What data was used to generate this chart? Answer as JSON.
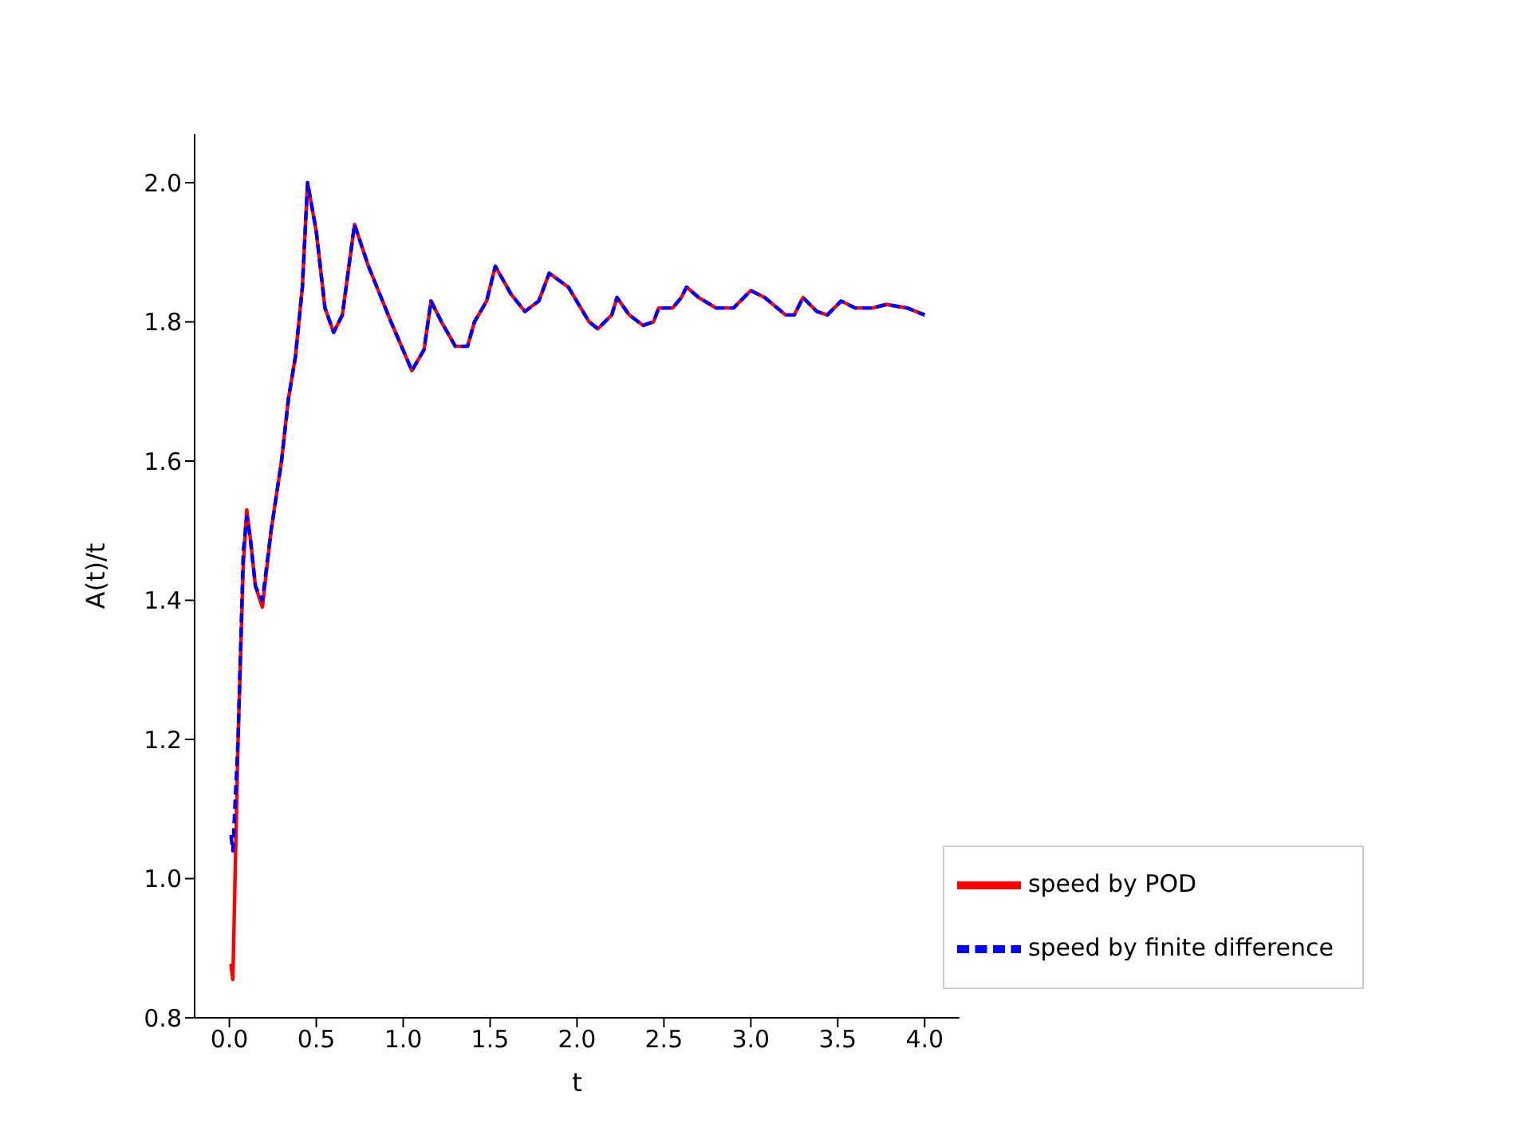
{
  "chart_data": {
    "type": "line",
    "xlabel": "t",
    "ylabel": "A(t)/t",
    "x": [
      0,
      0.01,
      0.02,
      0.05,
      0.08,
      0.1,
      0.12,
      0.15,
      0.19,
      0.24,
      0.3,
      0.34,
      0.38,
      0.42,
      0.45,
      0.5,
      0.55,
      0.6,
      0.65,
      0.72,
      0.8,
      0.93,
      1.05,
      1.12,
      1.16,
      1.22,
      1.3,
      1.37,
      1.41,
      1.48,
      1.53,
      1.62,
      1.7,
      1.78,
      1.84,
      1.95,
      2.07,
      2.12,
      2.2,
      2.23,
      2.3,
      2.38,
      2.44,
      2.47,
      2.55,
      2.6,
      2.63,
      2.7,
      2.8,
      2.9,
      3.0,
      3.08,
      3.2,
      3.25,
      3.3,
      3.38,
      3.44,
      3.52,
      3.6,
      3.7,
      3.78,
      3.9,
      4.0
    ],
    "series": [
      {
        "name": "speed by POD",
        "color": "#ff0000",
        "line_style": "solid",
        "values": [
          0.875,
          0.875,
          0.855,
          1.2,
          1.45,
          1.53,
          1.49,
          1.42,
          1.39,
          1.5,
          1.6,
          1.69,
          1.75,
          1.85,
          2.0,
          1.93,
          1.82,
          1.785,
          1.81,
          1.94,
          1.88,
          1.8,
          1.73,
          1.76,
          1.83,
          1.8,
          1.765,
          1.765,
          1.8,
          1.83,
          1.88,
          1.84,
          1.815,
          1.83,
          1.87,
          1.85,
          1.8,
          1.79,
          1.81,
          1.835,
          1.81,
          1.795,
          1.8,
          1.82,
          1.82,
          1.835,
          1.85,
          1.835,
          1.82,
          1.82,
          1.845,
          1.835,
          1.81,
          1.81,
          1.835,
          1.815,
          1.81,
          1.83,
          1.82,
          1.82,
          1.825,
          1.82,
          1.81
        ]
      },
      {
        "name": "speed by finite difference",
        "color": "#0000ff",
        "line_style": "dashed",
        "values": [
          1.06,
          1.06,
          1.04,
          1.2,
          1.47,
          1.52,
          1.49,
          1.42,
          1.4,
          1.5,
          1.6,
          1.69,
          1.75,
          1.85,
          2.0,
          1.93,
          1.82,
          1.785,
          1.81,
          1.94,
          1.88,
          1.8,
          1.73,
          1.76,
          1.83,
          1.8,
          1.765,
          1.765,
          1.8,
          1.83,
          1.88,
          1.84,
          1.815,
          1.83,
          1.87,
          1.85,
          1.8,
          1.79,
          1.81,
          1.835,
          1.81,
          1.795,
          1.8,
          1.82,
          1.82,
          1.835,
          1.85,
          1.835,
          1.82,
          1.82,
          1.845,
          1.835,
          1.81,
          1.81,
          1.835,
          1.815,
          1.81,
          1.83,
          1.82,
          1.82,
          1.825,
          1.82,
          1.81
        ]
      }
    ],
    "xlim": [
      -0.2,
      4.2
    ],
    "ylim": [
      0.8,
      2.07
    ],
    "xticks": [
      {
        "value": 0,
        "label": "0.0"
      },
      0.5,
      {
        "value": 1,
        "label": "1.0"
      },
      1.5,
      {
        "value": 2,
        "label": "2.0"
      },
      2.5,
      {
        "value": 3,
        "label": "3.0"
      },
      3.5,
      {
        "value": 4,
        "label": "4.0"
      }
    ],
    "yticks": [
      0.8,
      {
        "value": 1,
        "label": "1.0"
      },
      1.2,
      1.4,
      1.6,
      1.8,
      {
        "value": 2,
        "label": "2.0"
      }
    ],
    "grid": false,
    "legend": "bottom right"
  }
}
